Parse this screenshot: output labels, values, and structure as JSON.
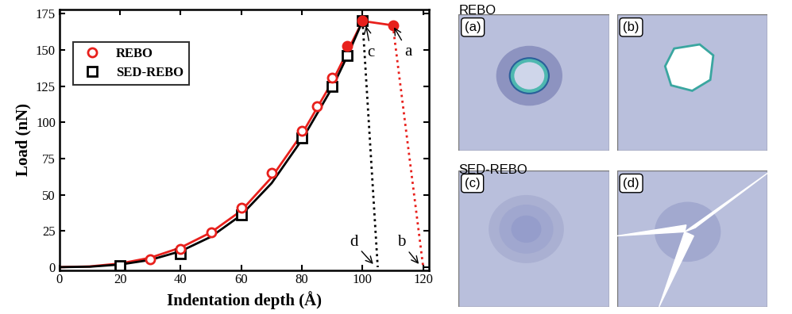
{
  "chart_data": {
    "type": "scatter",
    "x_label": "Indentation depth (Å)",
    "y_label": "Load (nN)",
    "xlim": [
      0,
      122
    ],
    "ylim": [
      -2,
      178
    ],
    "xticks": [
      0,
      20,
      40,
      60,
      80,
      100,
      120
    ],
    "yticks": [
      0,
      25,
      50,
      75,
      100,
      125,
      150,
      175
    ],
    "legend": "upper left",
    "grid": false,
    "series": [
      {
        "type": "line",
        "color": "#e8201c",
        "line_style": "solid",
        "x": [
          0,
          10,
          20,
          30,
          40,
          50,
          60,
          70,
          80,
          90,
          95,
          100,
          110
        ],
        "values": [
          0,
          0.5,
          2.5,
          6.5,
          13.5,
          24,
          39,
          62,
          92,
          128,
          149,
          170,
          167
        ]
      },
      {
        "type": "line",
        "color": "#e8201c",
        "line_style": "dotted",
        "x": [
          110,
          120
        ],
        "values": [
          167,
          0
        ]
      },
      {
        "type": "line",
        "color": "#000000",
        "line_style": "solid",
        "x": [
          0,
          10,
          20,
          30,
          40,
          50,
          60,
          70,
          80,
          90,
          95,
          100
        ],
        "values": [
          0,
          0.3,
          1.8,
          5,
          11,
          21,
          36,
          58,
          88,
          124,
          146,
          170
        ]
      },
      {
        "type": "line",
        "color": "#000000",
        "line_style": "dotted",
        "x": [
          100,
          105
        ],
        "values": [
          170,
          0
        ]
      },
      {
        "type": "scatter",
        "name": "SED-REBO",
        "color": "#000000",
        "marker": "open_square",
        "x": [
          20,
          40,
          60,
          80,
          90,
          95
        ],
        "values": [
          1,
          9,
          36,
          89,
          125,
          146
        ]
      },
      {
        "type": "scatter",
        "color": "#000000",
        "marker": "filled_square",
        "x": [
          100
        ],
        "values": [
          170
        ]
      },
      {
        "type": "scatter",
        "name": "REBO",
        "color": "#e8201c",
        "marker": "open_circle",
        "x": [
          30,
          40,
          50,
          60,
          70,
          80,
          85,
          90
        ],
        "values": [
          5.5,
          12.5,
          24,
          41,
          65,
          94,
          111,
          131
        ]
      },
      {
        "type": "scatter",
        "color": "#e8201c",
        "marker": "filled_circle",
        "x": [
          95,
          100,
          110
        ],
        "values": [
          153,
          170,
          167
        ]
      }
    ],
    "legend_order": [
      "REBO",
      "SED-REBO"
    ],
    "annotations": [
      {
        "text": "a",
        "x": 110,
        "y": 167
      },
      {
        "text": "c",
        "x": 101,
        "y": 168
      },
      {
        "text": "d",
        "x": 104,
        "y": 1
      },
      {
        "text": "b",
        "x": 119,
        "y": 1
      }
    ]
  },
  "panels": {
    "groups": [
      {
        "title": "REBO",
        "panels": [
          "(a)",
          "(b)"
        ]
      },
      {
        "title": "SED-REBO",
        "panels": [
          "(c)",
          "(d)"
        ]
      }
    ]
  }
}
